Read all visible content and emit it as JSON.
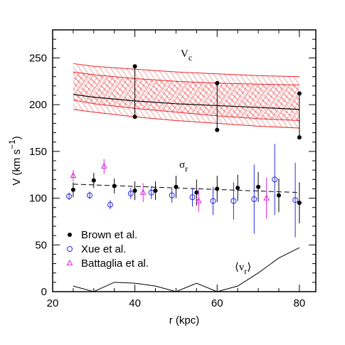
{
  "chart_data": {
    "type": "scatter",
    "xlabel": "r (kpc)",
    "ylabel": {
      "text": "V (km s",
      "sup": "−1",
      "close": ")"
    },
    "xlim": [
      20,
      84
    ],
    "ylim": [
      0,
      280
    ],
    "xticks": [
      20,
      40,
      60,
      80
    ],
    "yticks": [
      0,
      50,
      100,
      150,
      200,
      250
    ],
    "xminorticks": [
      25,
      30,
      35,
      45,
      50,
      55,
      65,
      70,
      75
    ],
    "yminorticks": [
      10,
      20,
      30,
      40,
      60,
      70,
      80,
      90,
      110,
      120,
      130,
      140,
      160,
      170,
      180,
      190,
      210,
      220,
      230,
      240,
      260,
      270
    ],
    "vc_band": {
      "color": "#e8262a",
      "x": [
        25,
        30,
        40,
        50,
        60,
        70,
        80
      ],
      "outer_upper": [
        244,
        241,
        238,
        235,
        233,
        231,
        230
      ],
      "outer_lower": [
        195,
        192,
        187,
        183,
        180,
        177,
        175
      ],
      "inner_upper": [
        235,
        232,
        228,
        225,
        223,
        222,
        221
      ],
      "inner_lower": [
        205,
        201,
        196,
        192,
        188,
        185,
        183
      ],
      "center": [
        211,
        208,
        204,
        201,
        199,
        197,
        195
      ]
    },
    "vc_points": {
      "color": "#000000",
      "x": [
        40,
        60,
        80
      ],
      "upper": [
        241,
        223,
        212
      ],
      "lower": [
        187,
        173,
        165
      ]
    },
    "series": [
      {
        "name": "Brown et al.",
        "color": "#000000",
        "marker": "dot",
        "x": [
          25,
          30,
          35,
          40,
          45,
          50,
          55,
          60,
          65,
          70,
          75,
          80
        ],
        "values": [
          109,
          119,
          113,
          108,
          108,
          112,
          106,
          110,
          111,
          112,
          103,
          95
        ],
        "errors": [
          8,
          8,
          8,
          10,
          10,
          12,
          14,
          14,
          14,
          16,
          18,
          22
        ]
      },
      {
        "name": "Xue et al.",
        "color": "#2a2ae0",
        "marker": "circle",
        "x": [
          24,
          29,
          34,
          39,
          44,
          49,
          54,
          59,
          64,
          69,
          74,
          79
        ],
        "values": [
          102,
          103,
          93,
          105,
          106,
          103,
          101,
          97,
          97,
          99,
          120,
          98
        ],
        "errors": [
          4,
          4,
          5,
          6,
          7,
          8,
          10,
          15,
          20,
          37,
          38,
          40
        ]
      },
      {
        "name": "Battaglia et al.",
        "color": "#e020e0",
        "marker": "triangle",
        "x": [
          25,
          32.5,
          42,
          55.5,
          72
        ],
        "values": [
          124,
          134,
          106,
          97,
          100
        ],
        "errors": [
          6,
          8,
          10,
          12,
          22
        ]
      }
    ],
    "sigma_fit": {
      "color": "#000000",
      "x": [
        25,
        80
      ],
      "values": [
        115,
        106
      ]
    },
    "vr_mean": {
      "color": "#000000",
      "x": [
        25,
        30,
        35,
        40,
        45,
        50,
        55,
        60,
        65,
        70,
        75,
        80
      ],
      "values": [
        6,
        0,
        10,
        9,
        6,
        0,
        9,
        0,
        6,
        20,
        36,
        47
      ]
    },
    "annotations": [
      {
        "text": "V",
        "sub": "c"
      },
      {
        "text": "σ",
        "sub": "r"
      },
      {
        "text": "⟨v",
        "sub": "r",
        "close": "⟩"
      }
    ]
  }
}
